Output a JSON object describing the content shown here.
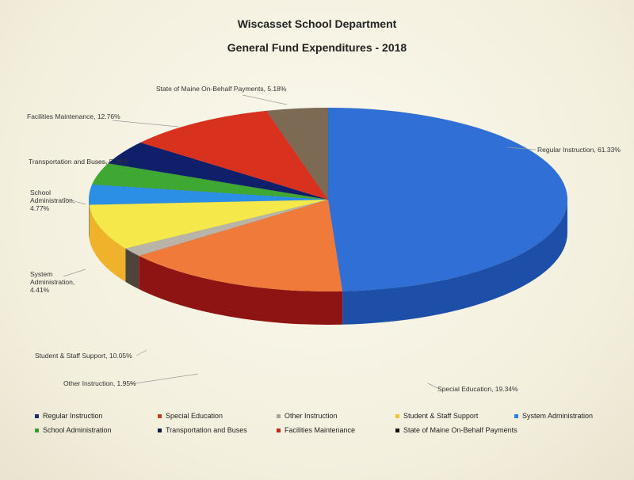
{
  "chart_data": {
    "type": "pie",
    "title": "Wiscasset School Department",
    "subtitle": "General Fund Expenditures - 2018",
    "slices": [
      {
        "name": "Regular Instruction",
        "value": 61.33,
        "label": "Regular Instruction, 61.33%",
        "color": "#2f6fd6",
        "side": "#1d4fa8",
        "legend_color": "#1a2f6e"
      },
      {
        "name": "Special Education",
        "value": 19.34,
        "label": "Special Education, 19.34%",
        "color": "#f07a3a",
        "side": "#8e1414",
        "legend_color": "#c93a1f"
      },
      {
        "name": "Other Instruction",
        "value": 1.95,
        "label": "Other Instruction, 1.95%",
        "color": "#b9b3a8",
        "side": "#4e443c",
        "legend_color": "#a9a29a"
      },
      {
        "name": "Student & Staff Support",
        "value": 10.05,
        "label": "Student & Staff Support, 10.05%",
        "color": "#f4e84a",
        "side": "#f0b22a",
        "legend_color": "#f0c330"
      },
      {
        "name": "System Administration",
        "value": 4.41,
        "label": "System Administration, 4.41%",
        "label_lines": [
          "System",
          "Administration,",
          "4.41%"
        ],
        "color": "#2b8fe6",
        "side": "#1a5fb0",
        "legend_color": "#2b7fd6"
      },
      {
        "name": "School Administration",
        "value": 4.77,
        "label": "School Administration, 4.77%",
        "label_lines": [
          "School",
          "Administration,",
          "4.77%"
        ],
        "color": "#3ea832",
        "side": "#24701e",
        "legend_color": "#3a9a2e"
      },
      {
        "name": "Transportation and Buses",
        "value": 5.26,
        "label": "Transportation and Buses, 5.26%",
        "color": "#0f1f6a",
        "side": "#0a1448",
        "legend_color": "#111a40"
      },
      {
        "name": "Facilities Maintenance",
        "value": 12.76,
        "label": "Facilities Maintenance, 12.76%",
        "color": "#d8321e",
        "side": "#8e1a10",
        "legend_color": "#c02a1a"
      },
      {
        "name": "State of Maine On-Behalf Payments",
        "value": 5.18,
        "label": "State of Maine On-Behalf Payments, 5.18%",
        "color": "#7c6a55",
        "side": "#4a3c2e",
        "legend_color": "#1a1410"
      }
    ],
    "legend_position": "bottom"
  }
}
